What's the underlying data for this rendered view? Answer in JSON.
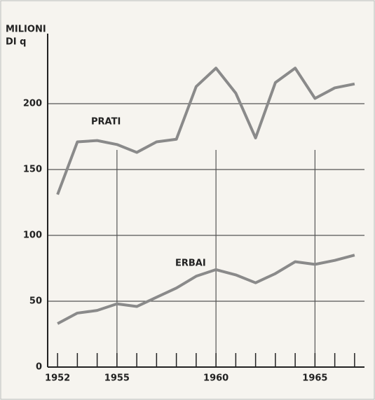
{
  "chart_data": {
    "type": "line",
    "y_label": [
      "MILIONI",
      "DI q"
    ],
    "x": [
      1952,
      1953,
      1954,
      1955,
      1956,
      1957,
      1958,
      1959,
      1960,
      1961,
      1962,
      1963,
      1964,
      1965,
      1966,
      1967
    ],
    "series": [
      {
        "name": "PRATI",
        "color": "#8a8a8a",
        "values": [
          131,
          171,
          172,
          169,
          163,
          171,
          173,
          213,
          227,
          208,
          174,
          216,
          227,
          204,
          212,
          215
        ]
      },
      {
        "name": "ERBAI",
        "color": "#8a8a8a",
        "values": [
          33,
          41,
          43,
          48,
          46,
          53,
          60,
          69,
          74,
          70,
          64,
          71,
          80,
          78,
          81,
          85
        ]
      }
    ],
    "xlim": [
      1951.5,
      1967.5
    ],
    "ylim": [
      0,
      250
    ],
    "xticks": [
      1952,
      1955,
      1960,
      1965
    ],
    "xticks_minor": [
      1952,
      1953,
      1954,
      1955,
      1956,
      1957,
      1958,
      1959,
      1960,
      1961,
      1962,
      1963,
      1964,
      1965,
      1966,
      1967
    ],
    "xgrid": [
      1955,
      1960,
      1965
    ],
    "yticks": [
      0,
      50,
      100,
      150,
      200
    ],
    "grid": true
  }
}
